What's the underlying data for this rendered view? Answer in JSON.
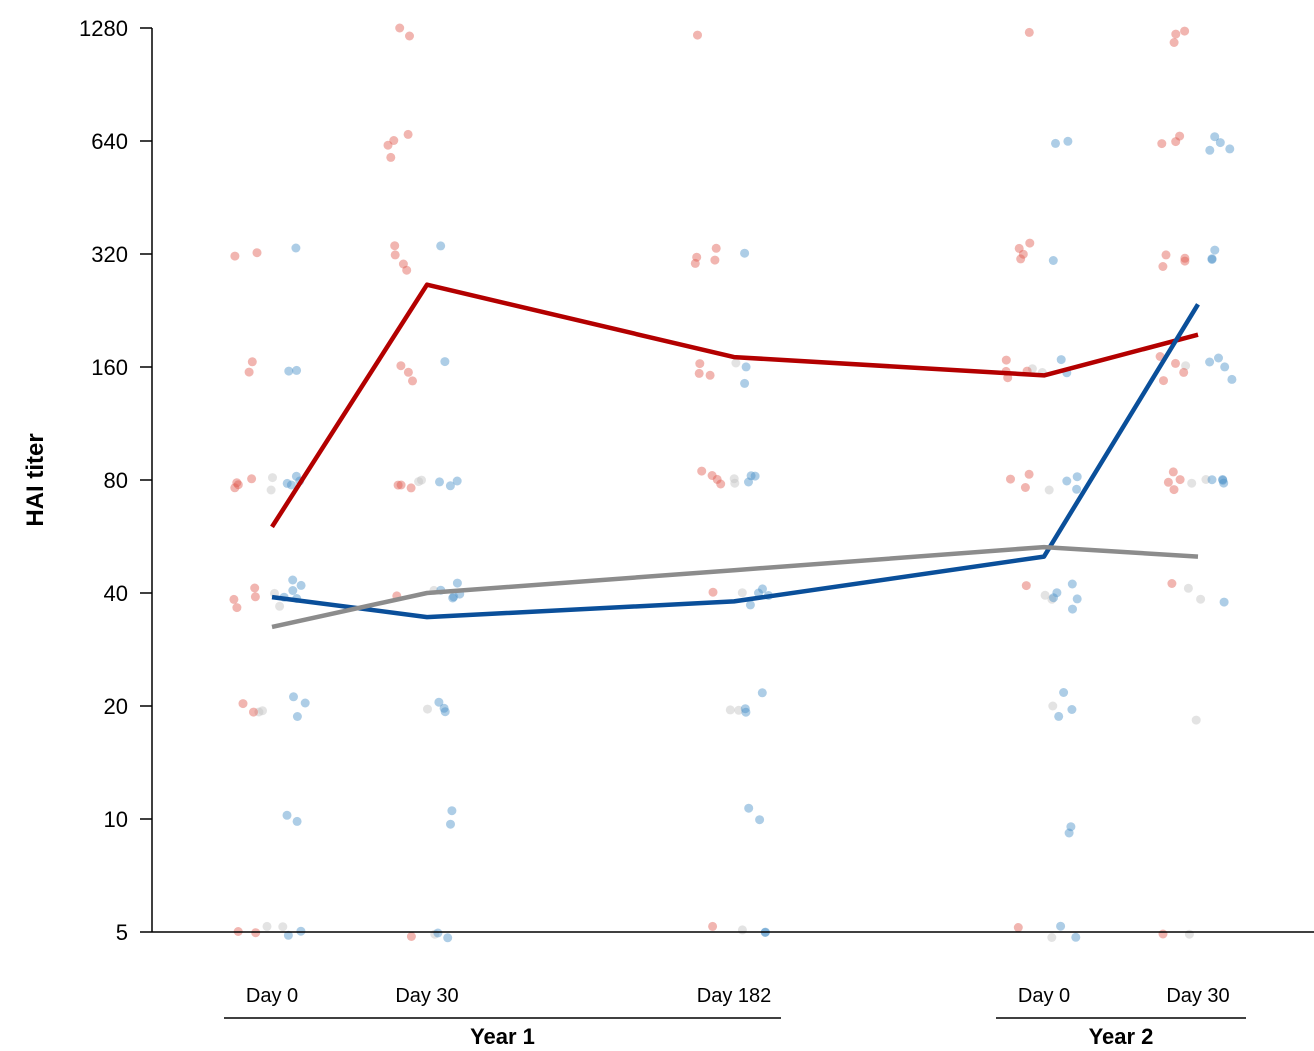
{
  "chart_data": {
    "type": "line",
    "ylabel": "HAI titer",
    "yscale": "log2",
    "ylim": [
      5,
      1280
    ],
    "y_ticks": [
      5,
      10,
      20,
      40,
      80,
      160,
      320,
      640,
      1280
    ],
    "y_tick_labels": [
      "5",
      "10",
      "20",
      "40",
      "80",
      "160",
      "320",
      "640",
      "1280"
    ],
    "categories": [
      "Day 0",
      "Day 30",
      "Day 182",
      "Day 0",
      "Day 30"
    ],
    "x_days": [
      0,
      30,
      182,
      0,
      30
    ],
    "groups": [
      {
        "label": "Year 1",
        "categories": [
          0,
          1,
          2
        ]
      },
      {
        "label": "Year 2",
        "categories": [
          3,
          4
        ]
      }
    ],
    "series": [
      {
        "color": "#b30000",
        "values": [
          60,
          265,
          170,
          152,
          195
        ]
      },
      {
        "color": "#0a4f9a",
        "values": [
          39,
          34.5,
          38,
          50,
          235
        ]
      },
      {
        "color": "#8c8c8c",
        "values": [
          32.5,
          40,
          46,
          53,
          50
        ]
      }
    ],
    "points": {
      "colors": {
        "red": "#e05a4f",
        "blue": "#4a90c8",
        "gray": "#c2c2c2"
      },
      "by_category": [
        {
          "red": [
            320,
            330,
            160,
            155,
            80,
            78,
            76,
            82,
            40,
            42,
            38,
            37,
            20,
            19,
            5,
            5
          ],
          "blue": [
            330,
            160,
            155,
            80,
            78,
            76,
            82,
            40,
            42,
            41,
            40,
            39,
            20,
            21,
            19,
            10,
            9.5,
            5,
            5
          ],
          "gray": [
            80,
            78,
            40,
            38,
            20,
            19,
            5,
            5
          ]
        },
        {
          "red": [
            1250,
            1200,
            640,
            660,
            620,
            600,
            320,
            310,
            300,
            330,
            160,
            155,
            150,
            80,
            78,
            76,
            40,
            5
          ],
          "blue": [
            330,
            160,
            80,
            78,
            76,
            41,
            40,
            39,
            38,
            42,
            20,
            21,
            19,
            10.5,
            10,
            5,
            5
          ],
          "gray": [
            80,
            78,
            40,
            19,
            5
          ]
        },
        {
          "red": [
            1200,
            320,
            310,
            300,
            330,
            160,
            155,
            150,
            80,
            78,
            76,
            82,
            40,
            5
          ],
          "blue": [
            310,
            160,
            150,
            80,
            78,
            82,
            40,
            39,
            38,
            41,
            20,
            21,
            19,
            10.5,
            10,
            5,
            5
          ],
          "gray": [
            160,
            80,
            78,
            40,
            20,
            19,
            5
          ]
        },
        {
          "red": [
            1280,
            320,
            310,
            300,
            330,
            160,
            155,
            150,
            165,
            80,
            78,
            82,
            42,
            5
          ],
          "blue": [
            640,
            620,
            300,
            165,
            160,
            80,
            78,
            82,
            41,
            40,
            39,
            38,
            37,
            20,
            21,
            19,
            9.5,
            9,
            5,
            5
          ],
          "gray": [
            160,
            155,
            78,
            40,
            38,
            20,
            5
          ]
        },
        {
          "red": [
            1300,
            1250,
            1200,
            640,
            660,
            620,
            320,
            310,
            300,
            330,
            160,
            155,
            150,
            165,
            80,
            78,
            76,
            82,
            42,
            5
          ],
          "blue": [
            640,
            620,
            650,
            630,
            320,
            310,
            330,
            160,
            165,
            150,
            155,
            80,
            78,
            76,
            82,
            38
          ],
          "gray": [
            160,
            80,
            78,
            40,
            38,
            19,
            5
          ]
        }
      ]
    }
  }
}
